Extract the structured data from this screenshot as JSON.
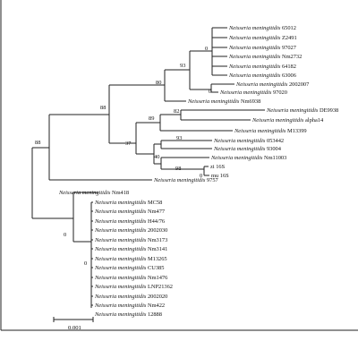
{
  "figure": {
    "species": "Neisseria meningitidis",
    "scale_bar_label": "0.001"
  },
  "taxa": [
    {
      "species": "Neisseria meningitidis",
      "strain": "65012"
    },
    {
      "species": "Neisseria meningitidis",
      "strain": "Z2491"
    },
    {
      "species": "Neisseria meningitidis",
      "strain": "97027"
    },
    {
      "species": "Neisseria meningitidis",
      "strain": "Nm2732"
    },
    {
      "species": "Neisseria meningitidis",
      "strain": "64182"
    },
    {
      "species": "Neisseria meningitidis",
      "strain": "63006"
    },
    {
      "species": "Neisseria meningitidis",
      "strain": "2002007"
    },
    {
      "species": "Neisseria meningitidis",
      "strain": "97020"
    },
    {
      "species": "Neisseria meningitidis",
      "strain": "Nm6938"
    },
    {
      "species": "Neisseria meningitidis",
      "strain": "DE9938"
    },
    {
      "species": "Neisseria meningitidis",
      "strain": "alpha14"
    },
    {
      "species": "Neisseria meningitidis",
      "strain": "M13399"
    },
    {
      "species": "Neisseria meningitidis",
      "strain": "053442"
    },
    {
      "species": "Neisseria meningitidis",
      "strain": "93004"
    },
    {
      "species": "Neisseria meningitidis",
      "strain": "Nm11003"
    },
    {
      "species": "",
      "strain": "zi 16S"
    },
    {
      "species": "",
      "strain": "mu 16S"
    },
    {
      "species": "Neisseria meningitidis",
      "strain": "9757"
    },
    {
      "species": "Neisseria meningitidis",
      "strain": "Nm418"
    },
    {
      "species": "Neisseria meningitidis",
      "strain": "MC58"
    },
    {
      "species": "Neisseria meningitidis",
      "strain": "Nm477"
    },
    {
      "species": "Neisseria meningitidis",
      "strain": "H44/76"
    },
    {
      "species": "Neisseria meningitidis",
      "strain": "2002030"
    },
    {
      "species": "Neisseria meningitidis",
      "strain": "Nm3173"
    },
    {
      "species": "Neisseria meningitidis",
      "strain": "Nm3141"
    },
    {
      "species": "Neisseria meningitidis",
      "strain": "M13265"
    },
    {
      "species": "Neisseria meningitidis",
      "strain": "CU385"
    },
    {
      "species": "Neisseria meningitidis",
      "strain": "Nm1476"
    },
    {
      "species": "Neisseria meningitidis",
      "strain": "LNP21362"
    },
    {
      "species": "Neisseria meningitidis",
      "strain": "2002020"
    },
    {
      "species": "Neisseria meningitidis",
      "strain": "Nm422"
    },
    {
      "species": "Neisseria meningitidis",
      "strain": "12888"
    }
  ],
  "supports": [
    "0",
    "93",
    "0",
    "80",
    "88",
    "82",
    "89",
    "93",
    "37",
    "98",
    "0",
    "40",
    "88",
    "0",
    "0"
  ]
}
